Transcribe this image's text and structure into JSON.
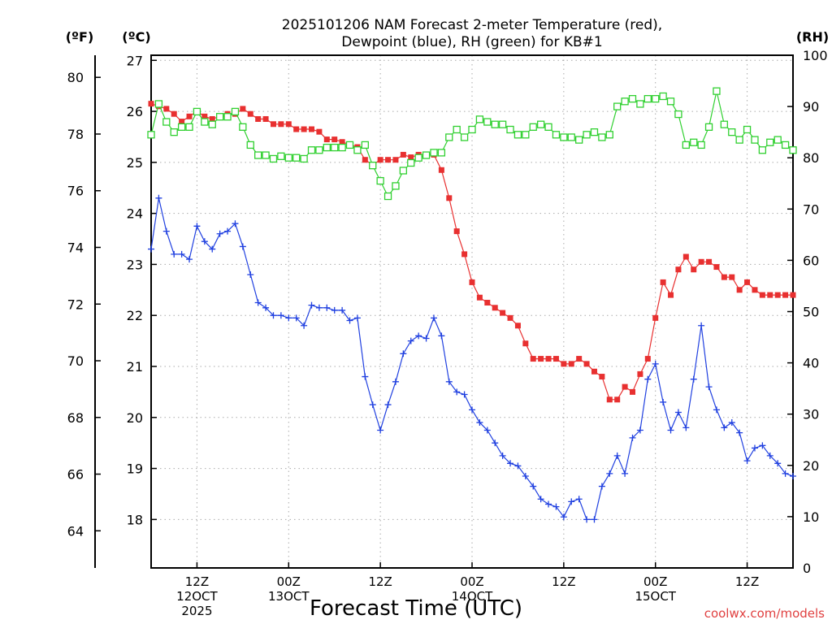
{
  "title_line1": "2025101206 NAM Forecast 2-meter Temperature (red),",
  "title_line2": "Dewpoint (blue), RH (green) for KB#1",
  "unit_f": "(ºF)",
  "unit_c": "(ºC)",
  "unit_rh": "(RH)",
  "xlabel": "Forecast Time (UTC)",
  "credit": "coolwx.com/models",
  "chart_data": {
    "type": "line",
    "x_units": "forecast hour from 2025101206",
    "xlim": [
      0,
      84
    ],
    "grid": true,
    "y_celsius": {
      "ticks": [
        18,
        19,
        20,
        21,
        22,
        23,
        24,
        25,
        26,
        27
      ],
      "ylim": [
        17.05,
        27.1
      ]
    },
    "y_fahrenheit": {
      "ticks": [
        64,
        66,
        68,
        70,
        72,
        74,
        76,
        78,
        80
      ],
      "ylim": [
        62.69,
        80.78
      ]
    },
    "y_rh": {
      "ticks": [
        0,
        10,
        20,
        30,
        40,
        50,
        60,
        70,
        80,
        90,
        100
      ],
      "ylim": [
        0,
        100
      ]
    },
    "x_ticks": [
      {
        "x": 6,
        "lines": [
          "12Z",
          "12OCT",
          "2025"
        ]
      },
      {
        "x": 18,
        "lines": [
          "00Z",
          "13OCT"
        ]
      },
      {
        "x": 30,
        "lines": [
          "12Z"
        ]
      },
      {
        "x": 42,
        "lines": [
          "00Z",
          "14OCT"
        ]
      },
      {
        "x": 54,
        "lines": [
          "12Z"
        ]
      },
      {
        "x": 66,
        "lines": [
          "00Z",
          "15OCT"
        ]
      },
      {
        "x": 78,
        "lines": [
          "12Z"
        ]
      }
    ],
    "series": [
      {
        "name": "Temperature",
        "axis": "celsius",
        "color": "#e83030",
        "marker": "filled-square",
        "points": [
          [
            0,
            26.15
          ],
          [
            1,
            26.1
          ],
          [
            2,
            26.05
          ],
          [
            3,
            25.95
          ],
          [
            4,
            25.8
          ],
          [
            5,
            25.9
          ],
          [
            6,
            26.0
          ],
          [
            7,
            25.9
          ],
          [
            8,
            25.85
          ],
          [
            9,
            25.9
          ],
          [
            10,
            25.95
          ],
          [
            11,
            25.95
          ],
          [
            12,
            26.05
          ],
          [
            13,
            25.95
          ],
          [
            14,
            25.85
          ],
          [
            15,
            25.85
          ],
          [
            16,
            25.75
          ],
          [
            17,
            25.75
          ],
          [
            18,
            25.75
          ],
          [
            19,
            25.65
          ],
          [
            20,
            25.65
          ],
          [
            21,
            25.65
          ],
          [
            22,
            25.6
          ],
          [
            23,
            25.45
          ],
          [
            24,
            25.45
          ],
          [
            25,
            25.4
          ],
          [
            26,
            25.35
          ],
          [
            27,
            25.3
          ],
          [
            28,
            25.05
          ],
          [
            29,
            24.95
          ],
          [
            30,
            25.05
          ],
          [
            31,
            25.05
          ],
          [
            32,
            25.05
          ],
          [
            33,
            25.15
          ],
          [
            34,
            25.1
          ],
          [
            35,
            25.15
          ],
          [
            36,
            25.15
          ],
          [
            37,
            25.15
          ],
          [
            38,
            24.85
          ],
          [
            39,
            24.3
          ],
          [
            40,
            23.65
          ],
          [
            41,
            23.2
          ],
          [
            42,
            22.65
          ],
          [
            43,
            22.35
          ],
          [
            44,
            22.25
          ],
          [
            45,
            22.15
          ],
          [
            46,
            22.05
          ],
          [
            47,
            21.95
          ],
          [
            48,
            21.8
          ],
          [
            49,
            21.45
          ],
          [
            50,
            21.15
          ],
          [
            51,
            21.15
          ],
          [
            52,
            21.15
          ],
          [
            53,
            21.15
          ],
          [
            54,
            21.05
          ],
          [
            55,
            21.05
          ],
          [
            56,
            21.15
          ],
          [
            57,
            21.05
          ],
          [
            58,
            20.9
          ],
          [
            59,
            20.8
          ],
          [
            60,
            20.35
          ],
          [
            61,
            20.35
          ],
          [
            62,
            20.6
          ],
          [
            63,
            20.5
          ],
          [
            64,
            20.85
          ],
          [
            65,
            21.15
          ],
          [
            66,
            21.95
          ],
          [
            67,
            22.65
          ],
          [
            68,
            22.4
          ],
          [
            69,
            22.9
          ],
          [
            70,
            23.15
          ],
          [
            71,
            22.9
          ],
          [
            72,
            23.05
          ],
          [
            73,
            23.05
          ],
          [
            74,
            22.95
          ],
          [
            75,
            22.75
          ],
          [
            76,
            22.75
          ],
          [
            77,
            22.5
          ],
          [
            78,
            22.65
          ],
          [
            79,
            22.5
          ],
          [
            80,
            22.4
          ],
          [
            81,
            22.4
          ],
          [
            82,
            22.4
          ],
          [
            83,
            22.4
          ],
          [
            84,
            22.4
          ]
        ]
      },
      {
        "name": "Dewpoint",
        "axis": "celsius",
        "color": "#2040e0",
        "marker": "plus",
        "points": [
          [
            0,
            23.3
          ],
          [
            1,
            24.3
          ],
          [
            2,
            23.65
          ],
          [
            3,
            23.2
          ],
          [
            4,
            23.2
          ],
          [
            5,
            23.1
          ],
          [
            6,
            23.75
          ],
          [
            7,
            23.45
          ],
          [
            8,
            23.3
          ],
          [
            9,
            23.6
          ],
          [
            10,
            23.65
          ],
          [
            11,
            23.8
          ],
          [
            12,
            23.35
          ],
          [
            13,
            22.8
          ],
          [
            14,
            22.25
          ],
          [
            15,
            22.15
          ],
          [
            16,
            22.0
          ],
          [
            17,
            22.0
          ],
          [
            18,
            21.95
          ],
          [
            19,
            21.95
          ],
          [
            20,
            21.8
          ],
          [
            21,
            22.2
          ],
          [
            22,
            22.15
          ],
          [
            23,
            22.15
          ],
          [
            24,
            22.1
          ],
          [
            25,
            22.1
          ],
          [
            26,
            21.9
          ],
          [
            27,
            21.95
          ],
          [
            28,
            20.8
          ],
          [
            29,
            20.25
          ],
          [
            30,
            19.75
          ],
          [
            31,
            20.25
          ],
          [
            32,
            20.7
          ],
          [
            33,
            21.25
          ],
          [
            34,
            21.5
          ],
          [
            35,
            21.6
          ],
          [
            36,
            21.55
          ],
          [
            37,
            21.95
          ],
          [
            38,
            21.6
          ],
          [
            39,
            20.7
          ],
          [
            40,
            20.5
          ],
          [
            41,
            20.45
          ],
          [
            42,
            20.15
          ],
          [
            43,
            19.9
          ],
          [
            44,
            19.75
          ],
          [
            45,
            19.5
          ],
          [
            46,
            19.25
          ],
          [
            47,
            19.1
          ],
          [
            48,
            19.05
          ],
          [
            49,
            18.85
          ],
          [
            50,
            18.65
          ],
          [
            51,
            18.4
          ],
          [
            52,
            18.3
          ],
          [
            53,
            18.25
          ],
          [
            54,
            18.05
          ],
          [
            55,
            18.35
          ],
          [
            56,
            18.4
          ],
          [
            57,
            18.0
          ],
          [
            58,
            18.0
          ],
          [
            59,
            18.65
          ],
          [
            60,
            18.9
          ],
          [
            61,
            19.25
          ],
          [
            62,
            18.9
          ],
          [
            63,
            19.6
          ],
          [
            64,
            19.75
          ],
          [
            65,
            20.75
          ],
          [
            66,
            21.05
          ],
          [
            67,
            20.3
          ],
          [
            68,
            19.75
          ],
          [
            69,
            20.1
          ],
          [
            70,
            19.8
          ],
          [
            71,
            20.75
          ],
          [
            72,
            21.8
          ],
          [
            73,
            20.6
          ],
          [
            74,
            20.15
          ],
          [
            75,
            19.8
          ],
          [
            76,
            19.9
          ],
          [
            77,
            19.7
          ],
          [
            78,
            19.15
          ],
          [
            79,
            19.4
          ],
          [
            80,
            19.45
          ],
          [
            81,
            19.25
          ],
          [
            82,
            19.1
          ],
          [
            83,
            18.9
          ],
          [
            84,
            18.85
          ]
        ]
      },
      {
        "name": "RH",
        "axis": "rh",
        "color": "#30d030",
        "marker": "open-square",
        "points": [
          [
            0,
            84.5
          ],
          [
            1,
            90.5
          ],
          [
            2,
            87
          ],
          [
            3,
            85
          ],
          [
            4,
            86
          ],
          [
            5,
            86
          ],
          [
            6,
            89
          ],
          [
            7,
            87
          ],
          [
            8,
            86.5
          ],
          [
            9,
            88
          ],
          [
            10,
            88
          ],
          [
            11,
            89
          ],
          [
            12,
            86
          ],
          [
            13,
            82.5
          ],
          [
            14,
            80.5
          ],
          [
            15,
            80.5
          ],
          [
            16,
            79.8
          ],
          [
            17,
            80.3
          ],
          [
            18,
            80
          ],
          [
            19,
            80
          ],
          [
            20,
            79.8
          ],
          [
            21,
            81.5
          ],
          [
            22,
            81.5
          ],
          [
            23,
            82
          ],
          [
            24,
            82
          ],
          [
            25,
            82
          ],
          [
            26,
            82.5
          ],
          [
            27,
            81.5
          ],
          [
            28,
            82.5
          ],
          [
            29,
            78.5
          ],
          [
            30,
            75.5
          ],
          [
            31,
            72.5
          ],
          [
            32,
            74.5
          ],
          [
            33,
            77.5
          ],
          [
            34,
            79
          ],
          [
            35,
            80
          ],
          [
            36,
            80.5
          ],
          [
            37,
            81
          ],
          [
            38,
            81
          ],
          [
            39,
            84
          ],
          [
            40,
            85.5
          ],
          [
            41,
            84
          ],
          [
            42,
            85.5
          ],
          [
            43,
            87.5
          ],
          [
            44,
            87
          ],
          [
            45,
            86.5
          ],
          [
            46,
            86.5
          ],
          [
            47,
            85.5
          ],
          [
            48,
            84.5
          ],
          [
            49,
            84.5
          ],
          [
            50,
            86
          ],
          [
            51,
            86.5
          ],
          [
            52,
            86
          ],
          [
            53,
            84.5
          ],
          [
            54,
            84
          ],
          [
            55,
            84
          ],
          [
            56,
            83.5
          ],
          [
            57,
            84.5
          ],
          [
            58,
            85
          ],
          [
            59,
            84
          ],
          [
            60,
            84.5
          ],
          [
            61,
            90
          ],
          [
            62,
            91
          ],
          [
            63,
            91.5
          ],
          [
            64,
            90.5
          ],
          [
            65,
            91.5
          ],
          [
            66,
            91.5
          ],
          [
            67,
            92
          ],
          [
            68,
            91
          ],
          [
            69,
            88.5
          ],
          [
            70,
            82.5
          ],
          [
            71,
            83
          ],
          [
            72,
            82.5
          ],
          [
            73,
            86
          ],
          [
            74,
            93
          ],
          [
            75,
            86.5
          ],
          [
            76,
            85
          ],
          [
            77,
            83.5
          ],
          [
            78,
            85.5
          ],
          [
            79,
            83.5
          ],
          [
            80,
            81.5
          ],
          [
            81,
            83
          ],
          [
            82,
            83.5
          ],
          [
            83,
            82.5
          ],
          [
            84,
            81.5
          ]
        ]
      }
    ]
  }
}
